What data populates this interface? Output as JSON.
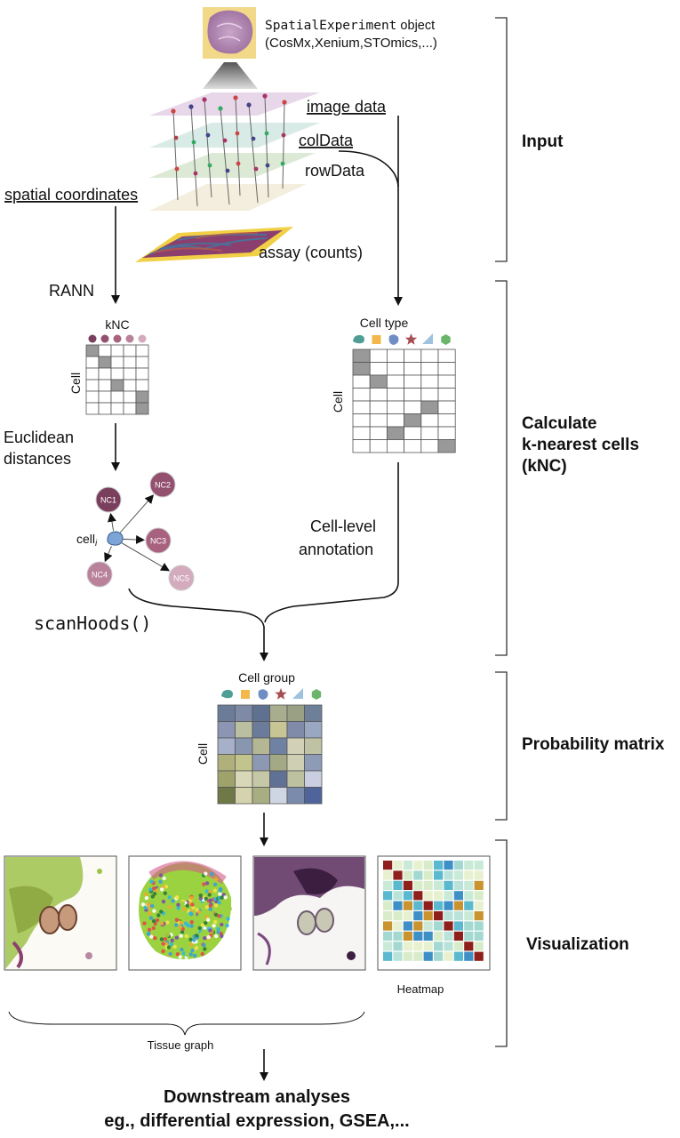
{
  "header": {
    "object_code": "SpatialExperiment",
    "object_suffix": " object",
    "platforms": "(CosMx,Xenium,STOmics,...)"
  },
  "inputs": {
    "image_data": "image data",
    "col_data": "colData",
    "row_data": "rowData",
    "assay": "assay (counts)",
    "spatial_coordinates": "spatial coordinates"
  },
  "knc_branch": {
    "method": "RANN",
    "matrix_title": "kNC",
    "row_axis": "Cell",
    "distance_label_line1": "Euclidean",
    "distance_label_line2": "distances",
    "focal_cell": "cell",
    "focal_cell_subscript": "i",
    "neighbors": [
      "NC1",
      "NC2",
      "NC3",
      "NC4",
      "NC5"
    ],
    "neighbor_colors": [
      "#7b3f5e",
      "#93506f",
      "#a8627f",
      "#b9819a",
      "#d3abbc"
    ]
  },
  "celltype_branch": {
    "matrix_title": "Cell type",
    "row_axis": "Cell",
    "annotation_line1": "Cell-level",
    "annotation_line2": "annotation"
  },
  "function_call": "scanHoods()",
  "probability": {
    "matrix_title": "Cell group",
    "row_axis": "Cell"
  },
  "shape_colors": {
    "blob": "#4f9e96",
    "square": "#f2b84b",
    "circle": "#6f8fc4",
    "star": "#a84e52",
    "triangle": "#9fc3df",
    "hexagon": "#6ab56a"
  },
  "stages": {
    "input": "Input",
    "calc_line1": "Calculate",
    "calc_line2": "k-nearest cells",
    "calc_line3": "(kNC)",
    "prob": "Probability matrix",
    "vis": "Visualization"
  },
  "visualization": {
    "heatmap_label": "Heatmap",
    "tissue_label": "Tissue graph"
  },
  "downstream": {
    "line1": "Downstream analyses",
    "line2": "eg., differential expression, GSEA,..."
  }
}
